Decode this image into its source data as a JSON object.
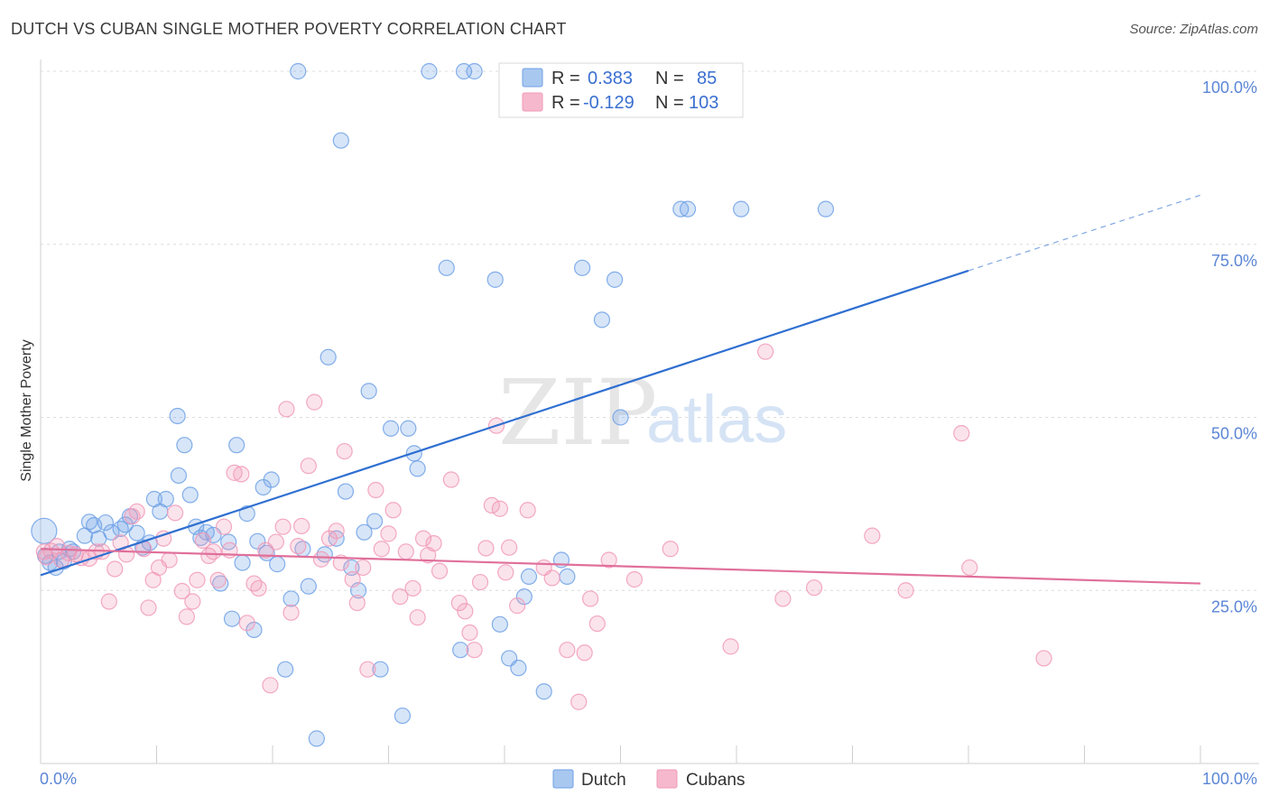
{
  "title": "DUTCH VS CUBAN SINGLE MOTHER POVERTY CORRELATION CHART",
  "source": "Source: ZipAtlas.com",
  "watermark": {
    "zip": "ZIP",
    "atlas": "atlas"
  },
  "legend": {
    "rows": [
      {
        "r_label": "R =",
        "r_value": "0.383",
        "n_label": "N =",
        "n_value": "85",
        "color": "#a9c8f0"
      },
      {
        "r_label": "R =",
        "r_value": "-0.129",
        "n_label": "N =",
        "n_value": "103",
        "color": "#f6b8cc"
      }
    ]
  },
  "bottom_legend": [
    {
      "label": "Dutch",
      "color": "#a9c8f0"
    },
    {
      "label": "Cubans",
      "color": "#f6b8cc"
    }
  ],
  "chart_data": {
    "type": "scatter",
    "title": "DUTCH VS CUBAN SINGLE MOTHER POVERTY CORRELATION CHART",
    "ylabel": "Single Mother Poverty",
    "xlabel": "",
    "xlim": [
      0,
      100
    ],
    "ylim": [
      0,
      100
    ],
    "x_tick_labels": [
      "0.0%",
      "100.0%"
    ],
    "y_tick_labels": [
      "25.0%",
      "50.0%",
      "75.0%",
      "100.0%"
    ],
    "y_ticks": [
      25,
      50,
      75,
      100
    ],
    "grid": true,
    "legend_position": "top-center",
    "series": [
      {
        "name": "Dutch",
        "color": "#6fa1e6",
        "line_color": "#2f6fd1",
        "trend": {
          "x0": 0,
          "y0": 27.2,
          "x1": 80,
          "y1": 71.2,
          "dash_to_x": 100,
          "dash_to_y": 82.1
        },
        "points": [
          [
            0.3,
            33.6
          ],
          [
            0.4,
            30.0
          ],
          [
            0.8,
            29.0
          ],
          [
            1.3,
            28.3
          ],
          [
            1.6,
            30.6
          ],
          [
            2.0,
            29.2
          ],
          [
            2.5,
            31.0
          ],
          [
            2.8,
            30.6
          ],
          [
            3.8,
            32.9
          ],
          [
            4.2,
            34.9
          ],
          [
            4.6,
            34.4
          ],
          [
            5.0,
            32.5
          ],
          [
            5.6,
            34.8
          ],
          [
            6.1,
            33.4
          ],
          [
            6.9,
            33.9
          ],
          [
            7.3,
            34.5
          ],
          [
            7.7,
            35.7
          ],
          [
            8.3,
            33.3
          ],
          [
            8.8,
            31.2
          ],
          [
            9.4,
            31.9
          ],
          [
            9.8,
            38.2
          ],
          [
            10.3,
            36.4
          ],
          [
            10.8,
            38.2
          ],
          [
            11.8,
            50.2
          ],
          [
            11.9,
            41.6
          ],
          [
            12.4,
            46.0
          ],
          [
            12.9,
            38.8
          ],
          [
            13.4,
            34.2
          ],
          [
            13.8,
            32.6
          ],
          [
            14.3,
            33.4
          ],
          [
            14.9,
            33.0
          ],
          [
            15.5,
            26.0
          ],
          [
            16.2,
            32.0
          ],
          [
            16.5,
            20.9
          ],
          [
            16.9,
            46.0
          ],
          [
            17.4,
            29.0
          ],
          [
            17.8,
            36.1
          ],
          [
            18.4,
            19.3
          ],
          [
            18.7,
            32.1
          ],
          [
            19.2,
            39.9
          ],
          [
            19.5,
            30.4
          ],
          [
            19.9,
            41.0
          ],
          [
            20.4,
            28.8
          ],
          [
            21.1,
            13.6
          ],
          [
            21.6,
            23.8
          ],
          [
            22.2,
            100.0
          ],
          [
            22.6,
            31.0
          ],
          [
            23.1,
            25.6
          ],
          [
            23.8,
            3.6
          ],
          [
            24.5,
            30.2
          ],
          [
            24.8,
            58.7
          ],
          [
            25.5,
            32.5
          ],
          [
            25.9,
            90.0
          ],
          [
            26.3,
            39.3
          ],
          [
            26.8,
            28.3
          ],
          [
            27.4,
            25.0
          ],
          [
            27.9,
            33.4
          ],
          [
            28.3,
            53.8
          ],
          [
            28.8,
            35.0
          ],
          [
            29.3,
            13.6
          ],
          [
            30.2,
            48.4
          ],
          [
            31.2,
            6.9
          ],
          [
            31.7,
            48.4
          ],
          [
            32.2,
            44.8
          ],
          [
            32.5,
            42.6
          ],
          [
            33.5,
            100.0
          ],
          [
            35.0,
            71.6
          ],
          [
            36.5,
            100.0
          ],
          [
            37.4,
            100.0
          ],
          [
            36.2,
            16.4
          ],
          [
            39.2,
            69.9
          ],
          [
            39.6,
            20.1
          ],
          [
            40.4,
            15.2
          ],
          [
            41.2,
            13.8
          ],
          [
            41.7,
            24.1
          ],
          [
            42.1,
            27.0
          ],
          [
            43.4,
            10.4
          ],
          [
            44.9,
            29.4
          ],
          [
            45.4,
            27.0
          ],
          [
            46.7,
            71.6
          ],
          [
            48.4,
            64.1
          ],
          [
            49.5,
            69.9
          ],
          [
            50.0,
            50.0
          ],
          [
            55.2,
            80.1
          ],
          [
            55.8,
            80.1
          ],
          [
            60.4,
            80.1
          ],
          [
            67.7,
            80.1
          ]
        ]
      },
      {
        "name": "Cubans",
        "color": "#f19ab8",
        "line_color": "#e0709a",
        "trend": {
          "x0": 0,
          "y0": 31.0,
          "x1": 100,
          "y1": 26.0
        },
        "points": [
          [
            0.3,
            30.6
          ],
          [
            0.5,
            29.8
          ],
          [
            0.9,
            30.7
          ],
          [
            1.4,
            31.4
          ],
          [
            1.8,
            29.4
          ],
          [
            2.4,
            30.4
          ],
          [
            3.0,
            30.2
          ],
          [
            3.5,
            29.7
          ],
          [
            4.2,
            29.6
          ],
          [
            4.8,
            30.6
          ],
          [
            5.3,
            30.6
          ],
          [
            5.9,
            23.4
          ],
          [
            6.4,
            28.1
          ],
          [
            6.9,
            31.9
          ],
          [
            7.4,
            30.2
          ],
          [
            7.9,
            35.7
          ],
          [
            8.3,
            36.4
          ],
          [
            8.9,
            31.0
          ],
          [
            9.3,
            22.5
          ],
          [
            9.7,
            26.5
          ],
          [
            10.2,
            28.3
          ],
          [
            10.6,
            32.5
          ],
          [
            11.1,
            29.4
          ],
          [
            11.6,
            36.2
          ],
          [
            12.2,
            24.9
          ],
          [
            12.6,
            21.2
          ],
          [
            13.1,
            23.4
          ],
          [
            13.5,
            26.5
          ],
          [
            14.0,
            32.2
          ],
          [
            14.5,
            30.0
          ],
          [
            14.9,
            30.6
          ],
          [
            15.3,
            26.5
          ],
          [
            15.8,
            34.2
          ],
          [
            16.3,
            30.8
          ],
          [
            16.7,
            42.0
          ],
          [
            17.3,
            41.8
          ],
          [
            17.8,
            20.3
          ],
          [
            18.4,
            26.0
          ],
          [
            18.8,
            25.3
          ],
          [
            19.4,
            30.8
          ],
          [
            19.8,
            11.3
          ],
          [
            20.3,
            32.0
          ],
          [
            20.9,
            34.2
          ],
          [
            21.2,
            51.2
          ],
          [
            21.6,
            21.8
          ],
          [
            22.2,
            31.4
          ],
          [
            22.5,
            34.3
          ],
          [
            23.1,
            43.0
          ],
          [
            23.6,
            52.2
          ],
          [
            24.2,
            29.5
          ],
          [
            24.9,
            32.5
          ],
          [
            25.5,
            33.6
          ],
          [
            25.9,
            29.0
          ],
          [
            26.2,
            45.1
          ],
          [
            26.9,
            26.6
          ],
          [
            27.3,
            23.2
          ],
          [
            27.8,
            28.3
          ],
          [
            28.2,
            13.6
          ],
          [
            28.9,
            39.5
          ],
          [
            29.4,
            31.0
          ],
          [
            30.0,
            33.2
          ],
          [
            30.4,
            36.6
          ],
          [
            31.0,
            24.1
          ],
          [
            31.5,
            30.6
          ],
          [
            32.1,
            25.3
          ],
          [
            32.5,
            21.1
          ],
          [
            33.0,
            32.5
          ],
          [
            33.4,
            30.1
          ],
          [
            33.9,
            31.8
          ],
          [
            34.4,
            27.8
          ],
          [
            35.4,
            41.0
          ],
          [
            36.1,
            23.2
          ],
          [
            36.6,
            22.0
          ],
          [
            37.0,
            18.9
          ],
          [
            37.4,
            16.4
          ],
          [
            37.9,
            26.2
          ],
          [
            38.4,
            31.1
          ],
          [
            38.9,
            37.3
          ],
          [
            39.3,
            48.8
          ],
          [
            39.6,
            36.8
          ],
          [
            40.1,
            27.6
          ],
          [
            40.4,
            31.2
          ],
          [
            41.1,
            22.8
          ],
          [
            42.0,
            36.6
          ],
          [
            43.4,
            28.3
          ],
          [
            44.1,
            26.8
          ],
          [
            45.4,
            16.4
          ],
          [
            46.4,
            8.9
          ],
          [
            46.9,
            16.0
          ],
          [
            47.4,
            23.8
          ],
          [
            48.0,
            20.2
          ],
          [
            49.0,
            29.4
          ],
          [
            51.2,
            26.6
          ],
          [
            54.3,
            31.0
          ],
          [
            59.5,
            16.9
          ],
          [
            62.5,
            59.5
          ],
          [
            64.0,
            23.8
          ],
          [
            66.7,
            25.4
          ],
          [
            71.7,
            32.9
          ],
          [
            74.6,
            25.0
          ],
          [
            79.4,
            47.7
          ],
          [
            80.1,
            28.3
          ],
          [
            86.5,
            15.2
          ]
        ]
      }
    ]
  }
}
